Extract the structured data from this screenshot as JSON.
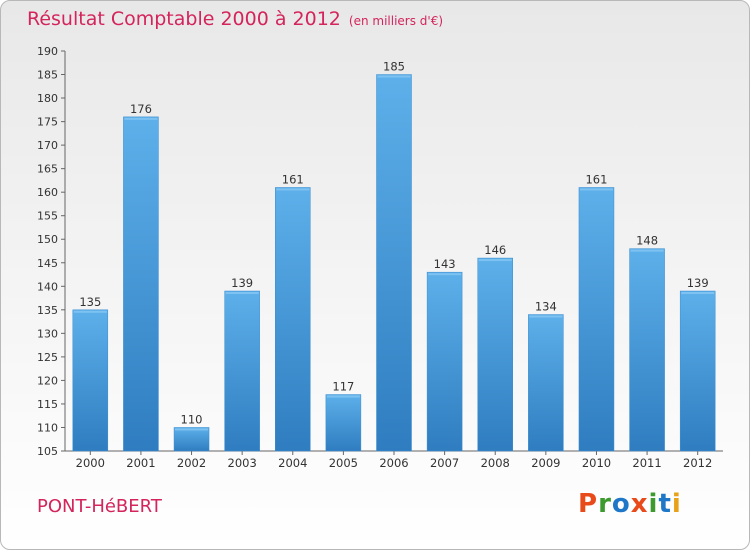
{
  "chart_data": {
    "type": "bar",
    "title": "Résultat Comptable 2000 à 2012",
    "subtitle": "(en milliers d'€)",
    "categories": [
      "2000",
      "2001",
      "2002",
      "2003",
      "2004",
      "2005",
      "2006",
      "2007",
      "2008",
      "2009",
      "2010",
      "2011",
      "2012"
    ],
    "values": [
      135,
      176,
      110,
      139,
      161,
      117,
      185,
      143,
      146,
      134,
      161,
      148,
      139
    ],
    "ylim": [
      105,
      190
    ],
    "ytick_step": 5,
    "xlabel": "",
    "ylabel": "",
    "grid": false,
    "bar_color": "#4fa3de"
  },
  "footer": {
    "town": "PONT-HéBERT",
    "brand": "Proxiti",
    "brand_colors": [
      "#e84a1a",
      "#3c9a2e",
      "#1f77c8",
      "#e84a1a",
      "#3c9a2e",
      "#1f77c8",
      "#e8a21a"
    ]
  }
}
